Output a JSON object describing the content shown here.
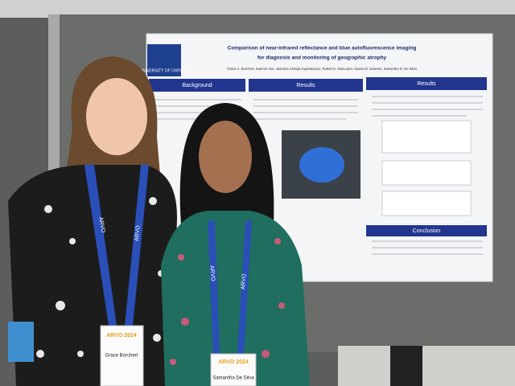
{
  "poster": {
    "institution": "UNIVERSITY OF OXFORD",
    "title_line_1": "Comparison of near-infrared reflectance and blue autofluorescence imaging",
    "title_line_2": "for diagnosis and monitoring of geographic atrophy",
    "authors": "Grace A. Borchert, Kanmin Xue, Jasmina Cehajic-Kapetanovic, Robert E. MacLaren, Susan M. Downes, Samantha R. De Silva",
    "sections": [
      "Background",
      "Results",
      "Results",
      "Conclusion"
    ]
  },
  "lanyard": "ARVO",
  "badges": [
    {
      "event": "ARVO 2024",
      "name": "Grace Borchert"
    },
    {
      "event": "ARVO 2024",
      "name": "Samantha De Silva"
    }
  ]
}
